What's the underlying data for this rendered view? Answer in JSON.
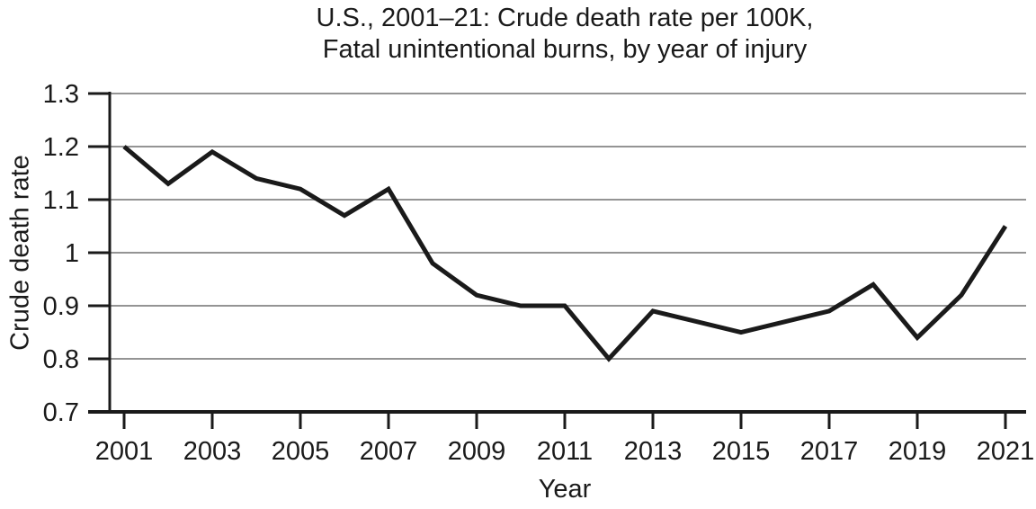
{
  "figure": {
    "title_line1": "U.S., 2001–21: Crude death rate per 100K,",
    "title_line2": "Fatal unintentional burns, by year of injury",
    "xlabel": "Year",
    "ylabel": "Crude death rate"
  },
  "chart_data": {
    "type": "line",
    "title": "U.S., 2001–21: Crude death rate per 100K, Fatal unintentional burns, by year of injury",
    "xlabel": "Year",
    "ylabel": "Crude death rate",
    "x": [
      2001,
      2002,
      2003,
      2004,
      2005,
      2006,
      2007,
      2008,
      2009,
      2010,
      2011,
      2012,
      2013,
      2014,
      2015,
      2016,
      2017,
      2018,
      2019,
      2020,
      2021
    ],
    "values": [
      1.2,
      1.13,
      1.19,
      1.14,
      1.12,
      1.07,
      1.12,
      0.98,
      0.92,
      0.9,
      0.9,
      0.8,
      0.89,
      0.87,
      0.85,
      0.87,
      0.89,
      0.94,
      0.84,
      0.92,
      1.05
    ],
    "ylim": [
      0.7,
      1.3
    ],
    "y_ticks": [
      0.7,
      0.8,
      0.9,
      1.0,
      1.1,
      1.2,
      1.3
    ],
    "y_tick_labels": [
      "0.7",
      "0.8",
      "0.9",
      "1",
      "1.1",
      "1.2",
      "1.3"
    ],
    "x_tick_years": [
      2001,
      2003,
      2005,
      2007,
      2009,
      2011,
      2013,
      2015,
      2017,
      2019,
      2021
    ],
    "grid": true,
    "legend": "none",
    "line_color": "#1a1a1a",
    "axis_color": "#1a1a1a",
    "text_color": "#1a1a1a",
    "grid_color": "#949494"
  }
}
